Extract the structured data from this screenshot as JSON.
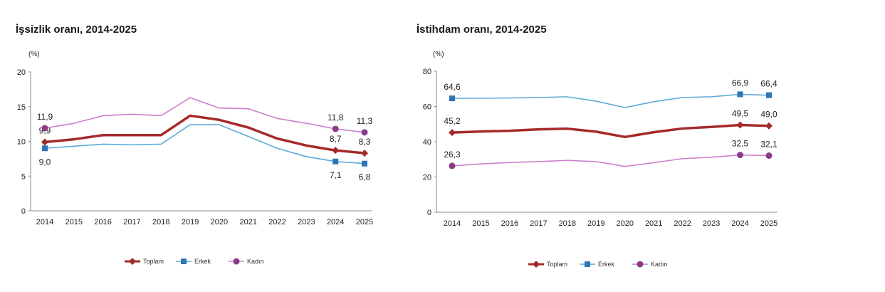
{
  "chart_data": [
    {
      "type": "line",
      "title": "İşsizlik oranı, 2014-2025",
      "ylabel": "(%)",
      "ylim": [
        0,
        20
      ],
      "yticks": [
        0,
        5,
        10,
        15,
        20
      ],
      "categories": [
        "2014",
        "2015",
        "2016",
        "2017",
        "2018",
        "2019",
        "2020",
        "2021",
        "2022",
        "2023",
        "2024",
        "2025"
      ],
      "grid": false,
      "legend_position": "bottom",
      "series": [
        {
          "name": "Toplam",
          "color": "#a52a2a",
          "marker": "diamond",
          "values": [
            9.9,
            10.3,
            10.9,
            10.9,
            10.9,
            13.7,
            13.1,
            12.0,
            10.4,
            9.4,
            8.7,
            8.3
          ],
          "labels": {
            "0": "9,9",
            "10": "8,7",
            "11": "8,3"
          },
          "label_pos": "above"
        },
        {
          "name": "Erkek",
          "color": "#5aaad8",
          "marker_color": "#2e75b6",
          "marker": "square",
          "values": [
            9.0,
            9.3,
            9.6,
            9.5,
            9.6,
            12.4,
            12.4,
            10.7,
            9.0,
            7.8,
            7.1,
            6.8
          ],
          "labels": {
            "0": "9,0",
            "10": "7,1",
            "11": "6,8"
          },
          "label_pos": "below"
        },
        {
          "name": "Kadın",
          "color": "#cc80cc",
          "marker_color": "#8b3a8b",
          "marker": "circle",
          "values": [
            11.9,
            12.6,
            13.7,
            13.9,
            13.7,
            16.3,
            14.8,
            14.7,
            13.3,
            12.6,
            11.8,
            11.3
          ],
          "labels": {
            "0": "11,9",
            "10": "11,8",
            "11": "11,3"
          },
          "label_pos": "above"
        }
      ]
    },
    {
      "type": "line",
      "title": "İstihdam oranı, 2014-2025",
      "ylabel": "(%)",
      "ylim": [
        0,
        80
      ],
      "yticks": [
        0,
        20,
        40,
        60,
        80
      ],
      "categories": [
        "2014",
        "2015",
        "2016",
        "2017",
        "2018",
        "2019",
        "2020",
        "2021",
        "2022",
        "2023",
        "2024",
        "2025"
      ],
      "grid": false,
      "legend_position": "bottom",
      "series": [
        {
          "name": "Toplam",
          "color": "#a52a2a",
          "marker": "diamond",
          "values": [
            45.2,
            45.8,
            46.2,
            47.0,
            47.4,
            45.7,
            42.7,
            45.4,
            47.5,
            48.4,
            49.5,
            49.0
          ],
          "labels": {
            "0": "45,2",
            "10": "49,5",
            "11": "49,0"
          },
          "label_pos": "above"
        },
        {
          "name": "Erkek",
          "color": "#5aaad8",
          "marker_color": "#2e75b6",
          "marker": "square",
          "values": [
            64.6,
            64.7,
            64.8,
            65.1,
            65.5,
            63.0,
            59.4,
            62.7,
            65.1,
            65.5,
            66.9,
            66.4
          ],
          "labels": {
            "0": "64,6",
            "10": "66,9",
            "11": "66,4"
          },
          "label_pos": "above"
        },
        {
          "name": "Kadın",
          "color": "#cc80cc",
          "marker_color": "#8b3a8b",
          "marker": "circle",
          "values": [
            26.3,
            27.4,
            28.2,
            28.7,
            29.4,
            28.7,
            26.0,
            28.1,
            30.4,
            31.2,
            32.5,
            32.1
          ],
          "labels": {
            "0": "26,3",
            "10": "32,5",
            "11": "32,1"
          },
          "label_pos": "above"
        }
      ]
    }
  ]
}
